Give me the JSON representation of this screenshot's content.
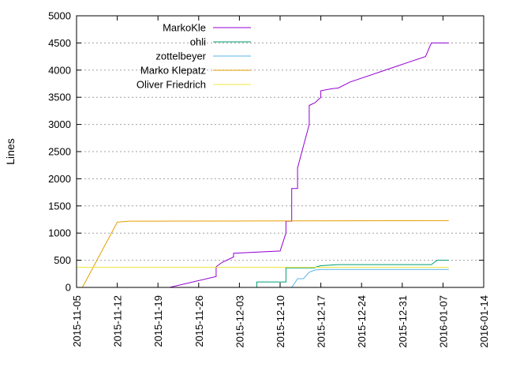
{
  "chart_data": {
    "type": "line",
    "title": "",
    "xlabel": "",
    "ylabel": "Lines",
    "x_type": "date",
    "xlim": [
      "2015-11-05",
      "2016-01-14"
    ],
    "ylim": [
      0,
      5000
    ],
    "x_ticks": [
      "2015-11-05",
      "2015-11-12",
      "2015-11-19",
      "2015-11-26",
      "2015-12-03",
      "2015-12-10",
      "2015-12-17",
      "2015-12-24",
      "2015-12-31",
      "2016-01-07",
      "2016-01-14"
    ],
    "y_ticks": [
      0,
      500,
      1000,
      1500,
      2000,
      2500,
      3000,
      3500,
      4000,
      4500,
      5000
    ],
    "grid": true,
    "legend_position": "top-right",
    "series": [
      {
        "name": "MarkoKle",
        "color": "#9400d3",
        "points": [
          [
            "2015-11-21",
            0
          ],
          [
            "2015-11-29",
            200
          ],
          [
            "2015-11-29",
            380
          ],
          [
            "2015-11-30",
            460
          ],
          [
            "2015-12-02",
            560
          ],
          [
            "2015-12-02",
            630
          ],
          [
            "2015-12-10",
            670
          ],
          [
            "2015-12-11",
            1000
          ],
          [
            "2015-12-11",
            1220
          ],
          [
            "2015-12-12",
            1220
          ],
          [
            "2015-12-12",
            1820
          ],
          [
            "2015-12-13",
            1820
          ],
          [
            "2015-12-13",
            2200
          ],
          [
            "2015-12-14",
            2600
          ],
          [
            "2015-12-15",
            3000
          ],
          [
            "2015-12-15",
            3350
          ],
          [
            "2015-12-16",
            3400
          ],
          [
            "2015-12-17",
            3500
          ],
          [
            "2015-12-17",
            3620
          ],
          [
            "2015-12-19",
            3660
          ],
          [
            "2015-12-20",
            3670
          ],
          [
            "2015-12-22",
            3780
          ],
          [
            "2016-01-04",
            4250
          ],
          [
            "2016-01-05",
            4500
          ],
          [
            "2016-01-08",
            4500
          ]
        ]
      },
      {
        "name": "ohli",
        "color": "#009e73",
        "points": [
          [
            "2015-12-05",
            0
          ],
          [
            "2015-12-06",
            0
          ],
          [
            "2015-12-06",
            100
          ],
          [
            "2015-12-11",
            100
          ],
          [
            "2015-12-11",
            360
          ],
          [
            "2015-12-16",
            360
          ],
          [
            "2015-12-16",
            370
          ],
          [
            "2015-12-17",
            400
          ],
          [
            "2015-12-20",
            420
          ],
          [
            "2016-01-05",
            420
          ],
          [
            "2016-01-06",
            500
          ],
          [
            "2016-01-08",
            500
          ]
        ]
      },
      {
        "name": "zottelbeyer",
        "color": "#56b4e9",
        "points": [
          [
            "2015-12-12",
            0
          ],
          [
            "2015-12-13",
            160
          ],
          [
            "2015-12-14",
            160
          ],
          [
            "2015-12-15",
            280
          ],
          [
            "2015-12-16",
            320
          ],
          [
            "2015-12-17",
            330
          ],
          [
            "2016-01-08",
            330
          ]
        ]
      },
      {
        "name": "Marko Klepatz",
        "color": "#e69f00",
        "points": [
          [
            "2015-11-06",
            0
          ],
          [
            "2015-11-12",
            1200
          ],
          [
            "2015-11-14",
            1220
          ],
          [
            "2016-01-08",
            1230
          ]
        ]
      },
      {
        "name": "Oliver Friedrich",
        "color": "#f0e442",
        "points": [
          [
            "2015-11-05",
            370
          ],
          [
            "2016-01-08",
            370
          ]
        ]
      }
    ]
  }
}
